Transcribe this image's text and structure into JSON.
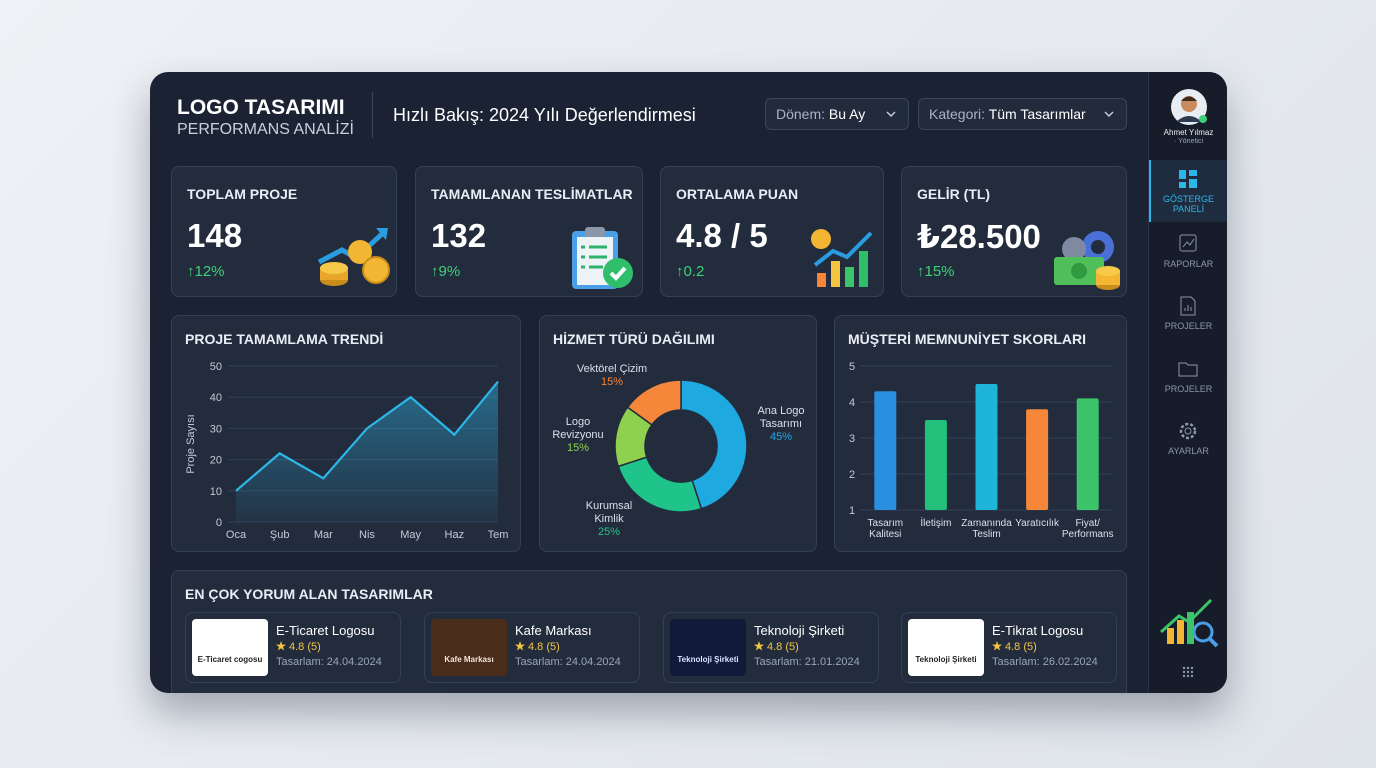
{
  "header": {
    "brand_title": "LOGO TASARIMI",
    "brand_subtitle": "PERFORMANS ANALİZİ",
    "page_title": "Hızlı Bakış: 2024 Yılı Değerlendirmesi",
    "filters": [
      {
        "label": "Dönem:",
        "value": "Bu Ay"
      },
      {
        "label": "Kategori:",
        "value": "Tüm Tasarımlar"
      }
    ]
  },
  "user": {
    "name": "Ahmet Yılmaz",
    "role": "· Yönetici"
  },
  "nav": [
    "GÖSTERGE PANELİ",
    "RAPORLAR",
    "PROJELER",
    "PROJELER",
    "AYARLAR"
  ],
  "kpis": [
    {
      "label": "TOPLAM PROJE",
      "value": "148",
      "change": "↑12%"
    },
    {
      "label": "TAMAMLANAN TESLİMATLAR",
      "value": "132",
      "change": "↑9%"
    },
    {
      "label": "ORTALAMA PUAN",
      "value": "4.8 / 5",
      "change": "↑0.2"
    },
    {
      "label": "GELİR (TL)",
      "value": "₺28.500",
      "change": "↑15%"
    }
  ],
  "chart_data": [
    {
      "type": "line",
      "title": "PROJE TAMAMLAMA TRENDİ",
      "y_label": "Proje Sayısı",
      "categories": [
        "Oca",
        "Şub",
        "Mar",
        "Nis",
        "May",
        "Haz",
        "Tem"
      ],
      "values": [
        10,
        22,
        14,
        30,
        40,
        28,
        45
      ],
      "color": "#2bb7e8",
      "ylim": [
        0,
        50
      ],
      "yticks": [
        0,
        10,
        20,
        30,
        40,
        50
      ],
      "grid": true
    },
    {
      "type": "pie",
      "title": "HİZMET TÜRÜ DAĞILIMI",
      "categories": [
        "Ana Logo Tasarımı",
        "Kurumsal Kimlik",
        "Logo Revizyonu",
        "Vektörel Çizim"
      ],
      "values": [
        45,
        25,
        15,
        15
      ],
      "value_labels": [
        "45%",
        "25%",
        "15%",
        "15%"
      ],
      "colors": [
        "#1ea9e0",
        "#1fc48a",
        "#8fd14f",
        "#f5863a"
      ]
    },
    {
      "type": "bar",
      "title": "MÜŞTERİ MEMNUNİYET SKORLARI",
      "categories": [
        "Tasarım Kalitesi",
        "İletişim",
        "Zamanında Teslim",
        "Yaratıcılık",
        "Fiyat/ Performans"
      ],
      "values": [
        4.3,
        3.5,
        4.5,
        3.8,
        4.1
      ],
      "colors": [
        "#2b8fe0",
        "#22c07a",
        "#1fb5d8",
        "#f5863a",
        "#3cc46a"
      ],
      "ylim": [
        1,
        5
      ],
      "yticks": [
        1,
        2,
        3,
        4,
        5
      ],
      "grid": true
    }
  ],
  "reviews": {
    "title": "EN ÇOK YORUM ALAN TASARIMLAR",
    "items": [
      {
        "thumb": "E-Ticaret cogosu",
        "name": "E-Ticaret Logosu",
        "rating": "4.8 (5)",
        "date": "Tasarlam: 24.04.2024"
      },
      {
        "thumb": "Kafe Markası",
        "name": "Kafe Markası",
        "rating": "4.8 (5)",
        "date": "Tasarlam: 24.04.2024"
      },
      {
        "thumb": "Teknoloji Şirketi",
        "name": "Teknoloji Şirketi",
        "rating": "4.8 (5)",
        "date": "Tasarlam: 21.01.2024"
      },
      {
        "thumb": "Teknoloji Şirketi",
        "name": "E-Tikrat Logosu",
        "rating": "4.8 (5)",
        "date": "Tasarlam: 26.02.2024"
      }
    ]
  }
}
